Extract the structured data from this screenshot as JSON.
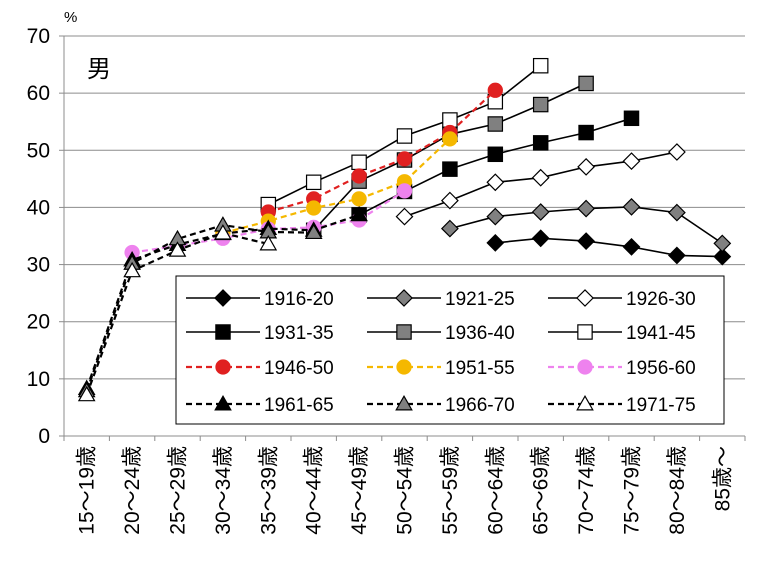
{
  "chart_data": {
    "type": "line",
    "unit": "%",
    "panel_label": "男",
    "ylim": [
      0,
      70
    ],
    "yticks": [
      0,
      10,
      20,
      30,
      40,
      50,
      60,
      70
    ],
    "grid": true,
    "legend_position": "bottom-right",
    "categories": [
      "15～19歳",
      "20～24歳",
      "25～29歳",
      "30～34歳",
      "35～39歳",
      "40～44歳",
      "45～49歳",
      "50～54歳",
      "55～59歳",
      "60～64歳",
      "65～69歳",
      "70～74歳",
      "75～79歳",
      "80～84歳",
      "85歳～"
    ],
    "series": [
      {
        "name": "1916-20",
        "color": "#000000",
        "marker": "diamond-filled",
        "dashed": false,
        "values": [
          null,
          null,
          null,
          null,
          null,
          null,
          null,
          null,
          null,
          33.8,
          34.6,
          34.1,
          33.1,
          31.6,
          31.4
        ]
      },
      {
        "name": "1921-25",
        "color": "#000000",
        "marker": "diamond-gray",
        "dashed": false,
        "values": [
          null,
          null,
          null,
          null,
          null,
          null,
          null,
          null,
          36.3,
          38.4,
          39.2,
          39.8,
          40.1,
          39.1,
          33.7
        ]
      },
      {
        "name": "1926-30",
        "color": "#000000",
        "marker": "diamond-open",
        "dashed": false,
        "values": [
          null,
          null,
          null,
          null,
          null,
          null,
          null,
          38.4,
          41.2,
          44.4,
          45.2,
          47.1,
          48.1,
          49.7,
          null
        ]
      },
      {
        "name": "1931-35",
        "color": "#000000",
        "marker": "square-filled",
        "dashed": false,
        "values": [
          null,
          null,
          null,
          null,
          null,
          null,
          38.7,
          42.8,
          46.7,
          49.3,
          51.3,
          53.1,
          55.6,
          null,
          null
        ]
      },
      {
        "name": "1936-40",
        "color": "#000000",
        "marker": "square-gray",
        "dashed": false,
        "values": [
          null,
          null,
          null,
          null,
          null,
          36.0,
          44.6,
          48.3,
          52.8,
          54.6,
          58.0,
          61.7,
          null,
          null,
          null
        ]
      },
      {
        "name": "1941-45",
        "color": "#000000",
        "marker": "square-open",
        "dashed": false,
        "values": [
          null,
          null,
          null,
          null,
          40.5,
          44.4,
          47.9,
          52.5,
          55.3,
          58.5,
          64.8,
          null,
          null,
          null,
          null
        ]
      },
      {
        "name": "1946-50",
        "color": "#e02020",
        "marker": "circle",
        "dashed": true,
        "values": [
          null,
          null,
          null,
          null,
          39.2,
          41.5,
          45.5,
          48.5,
          53.1,
          60.5,
          null,
          null,
          null,
          null,
          null
        ]
      },
      {
        "name": "1951-55",
        "color": "#f5b800",
        "marker": "circle",
        "dashed": true,
        "values": [
          null,
          null,
          null,
          35.5,
          37.6,
          39.9,
          41.5,
          44.5,
          52.0,
          null,
          null,
          null,
          null,
          null,
          null
        ]
      },
      {
        "name": "1956-60",
        "color": "#ee82ee",
        "marker": "circle",
        "dashed": true,
        "values": [
          null,
          32.1,
          33.3,
          34.6,
          36.2,
          36.5,
          37.8,
          42.9,
          null,
          null,
          null,
          null,
          null,
          null,
          null
        ]
      },
      {
        "name": "1961-65",
        "color": "#000000",
        "marker": "triangle-filled",
        "dashed": true,
        "values": [
          8.3,
          30.8,
          33.5,
          35.4,
          36.3,
          36.0,
          38.7,
          null,
          null,
          null,
          null,
          null,
          null,
          null,
          null
        ]
      },
      {
        "name": "1966-70",
        "color": "#000000",
        "marker": "triangle-gray",
        "dashed": true,
        "values": [
          7.9,
          30.2,
          34.5,
          36.9,
          35.7,
          35.6,
          null,
          null,
          null,
          null,
          null,
          null,
          null,
          null,
          null
        ]
      },
      {
        "name": "1971-75",
        "color": "#000000",
        "marker": "triangle-open",
        "dashed": true,
        "values": [
          7.2,
          28.9,
          32.5,
          35.5,
          33.6,
          null,
          null,
          null,
          null,
          null,
          null,
          null,
          null,
          null,
          null
        ]
      }
    ]
  }
}
